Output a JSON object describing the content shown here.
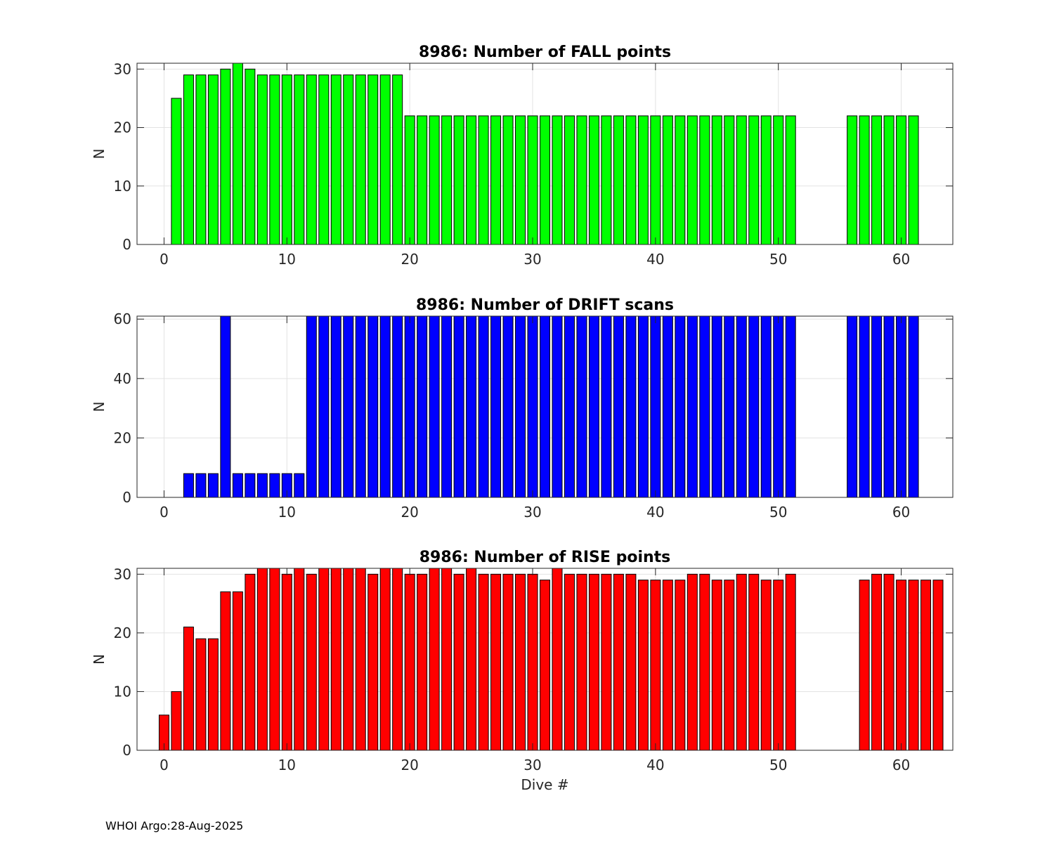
{
  "footer": "WHOI Argo:28-Aug-2025",
  "chart_data": [
    {
      "type": "bar",
      "title": "8986: Number of FALL points",
      "ylabel": "N",
      "xlabel": "",
      "xlim": [
        -2.2,
        64.2
      ],
      "ylim": [
        0,
        31
      ],
      "xticks": [
        0,
        10,
        20,
        30,
        40,
        50,
        60
      ],
      "yticks": [
        0,
        10,
        20,
        30
      ],
      "grid": true,
      "color": "#00ff00",
      "x": [
        1,
        2,
        3,
        4,
        5,
        6,
        7,
        8,
        9,
        10,
        11,
        12,
        13,
        14,
        15,
        16,
        17,
        18,
        19,
        20,
        21,
        22,
        23,
        24,
        25,
        26,
        27,
        28,
        29,
        30,
        31,
        32,
        33,
        34,
        35,
        36,
        37,
        38,
        39,
        40,
        41,
        42,
        43,
        44,
        45,
        46,
        47,
        48,
        49,
        50,
        51,
        56,
        57,
        58,
        59,
        60,
        61
      ],
      "values": [
        25,
        29,
        29,
        29,
        30,
        31,
        30,
        29,
        29,
        29,
        29,
        29,
        29,
        29,
        29,
        29,
        29,
        29,
        29,
        22,
        22,
        22,
        22,
        22,
        22,
        22,
        22,
        22,
        22,
        22,
        22,
        22,
        22,
        22,
        22,
        22,
        22,
        22,
        22,
        22,
        22,
        22,
        22,
        22,
        22,
        22,
        22,
        22,
        22,
        22,
        22,
        22,
        22,
        22,
        22,
        22,
        22
      ]
    },
    {
      "type": "bar",
      "title": "8986: Number of DRIFT scans",
      "ylabel": "N",
      "xlabel": "",
      "xlim": [
        -2.2,
        64.2
      ],
      "ylim": [
        0,
        61
      ],
      "xticks": [
        0,
        10,
        20,
        30,
        40,
        50,
        60
      ],
      "yticks": [
        0,
        20,
        40,
        60
      ],
      "grid": true,
      "color": "#0000ff",
      "x": [
        -1,
        0,
        1,
        2,
        3,
        4,
        5,
        6,
        7,
        8,
        9,
        10,
        11,
        12,
        13,
        14,
        15,
        16,
        17,
        18,
        19,
        20,
        21,
        22,
        23,
        24,
        25,
        26,
        27,
        28,
        29,
        30,
        31,
        32,
        33,
        34,
        35,
        36,
        37,
        38,
        39,
        40,
        41,
        42,
        43,
        44,
        45,
        46,
        47,
        48,
        49,
        50,
        51,
        53,
        56,
        57,
        58,
        59,
        60,
        61,
        62,
        63
      ],
      "values": [
        0,
        0,
        0,
        8,
        8,
        8,
        61,
        8,
        8,
        8,
        8,
        8,
        8,
        61,
        61,
        61,
        61,
        61,
        61,
        61,
        61,
        61,
        61,
        61,
        61,
        61,
        61,
        61,
        61,
        61,
        61,
        61,
        61,
        61,
        61,
        61,
        61,
        61,
        61,
        61,
        61,
        61,
        61,
        61,
        61,
        61,
        61,
        61,
        61,
        61,
        61,
        61,
        61,
        0,
        61,
        61,
        61,
        61,
        61,
        61,
        0,
        0
      ]
    },
    {
      "type": "bar",
      "title": "8986: Number of RISE points",
      "ylabel": "N",
      "xlabel": "Dive #",
      "xlim": [
        -2.2,
        64.2
      ],
      "ylim": [
        0,
        31
      ],
      "xticks": [
        0,
        10,
        20,
        30,
        40,
        50,
        60
      ],
      "yticks": [
        0,
        10,
        20,
        30
      ],
      "grid": true,
      "color": "#ff0000",
      "x": [
        0,
        1,
        2,
        3,
        4,
        5,
        6,
        7,
        8,
        9,
        10,
        11,
        12,
        13,
        14,
        15,
        16,
        17,
        18,
        19,
        20,
        21,
        22,
        23,
        24,
        25,
        26,
        27,
        28,
        29,
        30,
        31,
        32,
        33,
        34,
        35,
        36,
        37,
        38,
        39,
        40,
        41,
        42,
        43,
        44,
        45,
        46,
        47,
        48,
        49,
        50,
        51,
        57,
        58,
        59,
        60,
        61,
        62,
        63
      ],
      "values": [
        6,
        10,
        21,
        19,
        19,
        27,
        27,
        30,
        31,
        31,
        30,
        31,
        30,
        31,
        31,
        31,
        31,
        30,
        31,
        31,
        30,
        30,
        31,
        31,
        30,
        31,
        30,
        30,
        30,
        30,
        30,
        29,
        31,
        30,
        30,
        30,
        30,
        30,
        30,
        29,
        29,
        29,
        29,
        30,
        30,
        29,
        29,
        30,
        30,
        29,
        29,
        30,
        29,
        30,
        30,
        29,
        29,
        29,
        29
      ]
    }
  ]
}
